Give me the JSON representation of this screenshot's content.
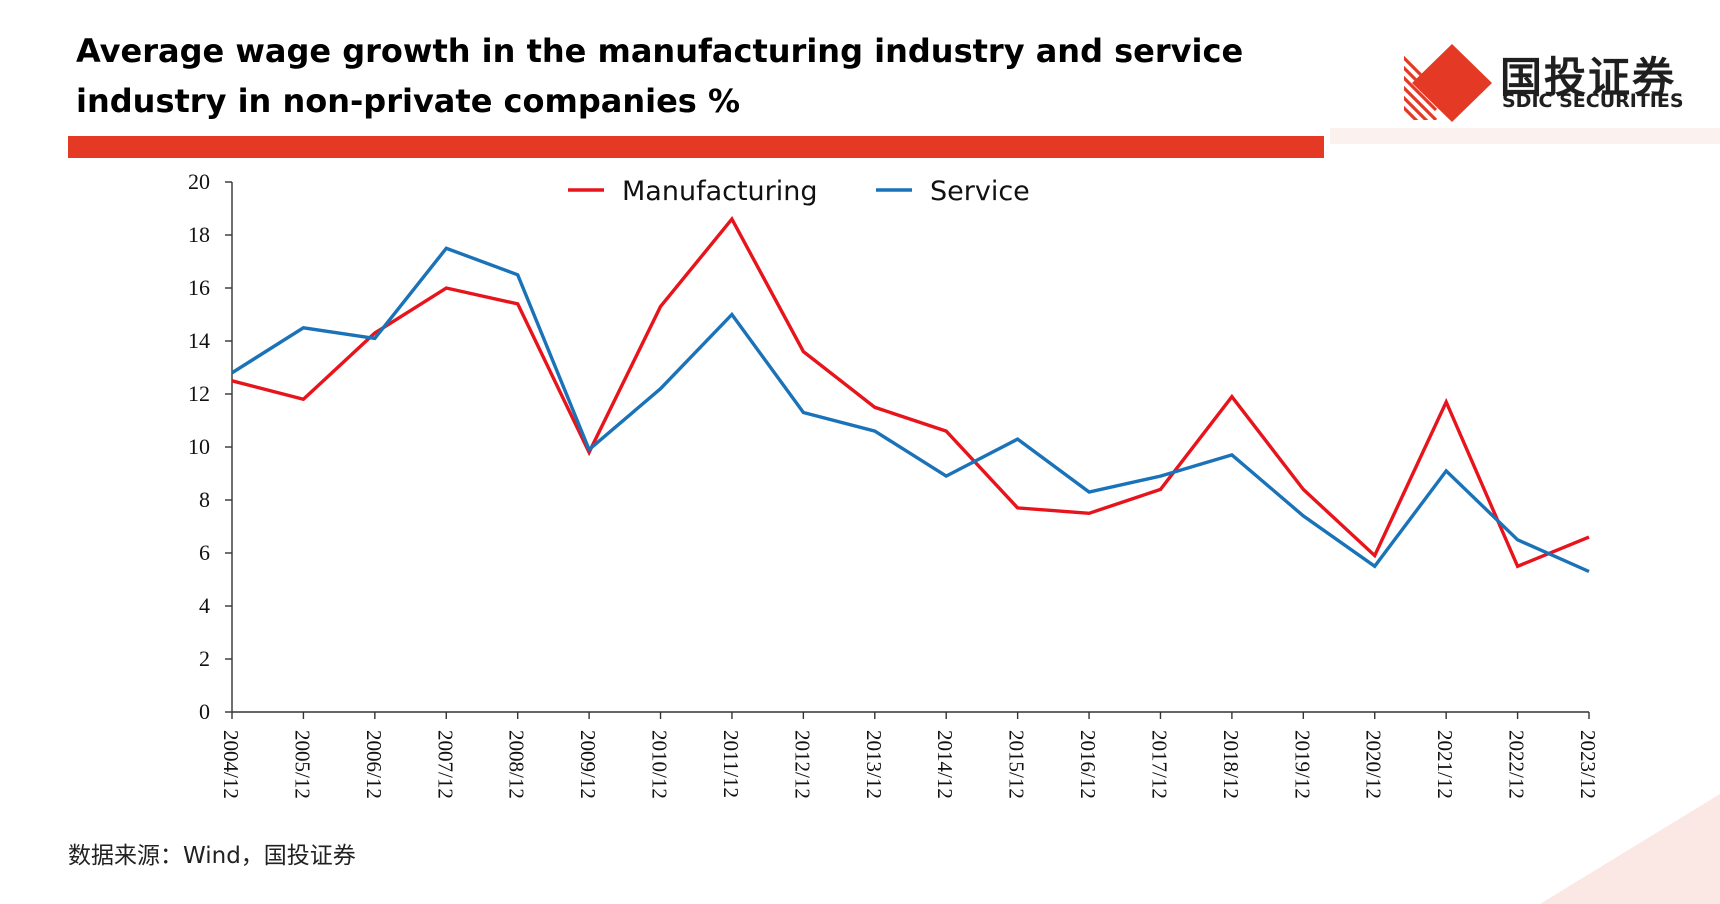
{
  "header": {
    "title": "Average wage growth in the manufacturing industry and service industry in non-private companies %"
  },
  "brand": {
    "name_cn": "国投证券",
    "name_en": "SDIC SECURITIES",
    "logo_icon": "red-diamond-stripes-icon",
    "accent": "#e43a25"
  },
  "chart_data": {
    "type": "line",
    "title": "",
    "xlabel": "",
    "ylabel": "",
    "ylim": [
      0,
      20
    ],
    "yticks": [
      0,
      2,
      4,
      6,
      8,
      10,
      12,
      14,
      16,
      18,
      20
    ],
    "grid": false,
    "legend_position": "top-center",
    "categories": [
      "2004/12",
      "2005/12",
      "2006/12",
      "2007/12",
      "2008/12",
      "2009/12",
      "2010/12",
      "2011/12",
      "2012/12",
      "2013/12",
      "2014/12",
      "2015/12",
      "2016/12",
      "2017/12",
      "2018/12",
      "2019/12",
      "2020/12",
      "2021/12",
      "2022/12",
      "2023/12"
    ],
    "series": [
      {
        "name": "Manufacturing",
        "color": "#e8141c",
        "values": [
          12.5,
          11.8,
          14.3,
          16.0,
          15.4,
          9.8,
          15.3,
          18.6,
          13.6,
          11.5,
          10.6,
          7.7,
          7.5,
          8.4,
          11.9,
          8.4,
          5.9,
          11.7,
          5.5,
          6.6
        ]
      },
      {
        "name": "Service",
        "color": "#1a72b8",
        "values": [
          12.8,
          14.5,
          14.1,
          17.5,
          16.5,
          9.9,
          12.2,
          15.0,
          11.3,
          10.6,
          8.9,
          10.3,
          8.3,
          8.9,
          9.7,
          7.4,
          5.5,
          9.1,
          6.5,
          5.3
        ]
      }
    ]
  },
  "footer": {
    "source": "数据来源：Wind，国投证券"
  }
}
